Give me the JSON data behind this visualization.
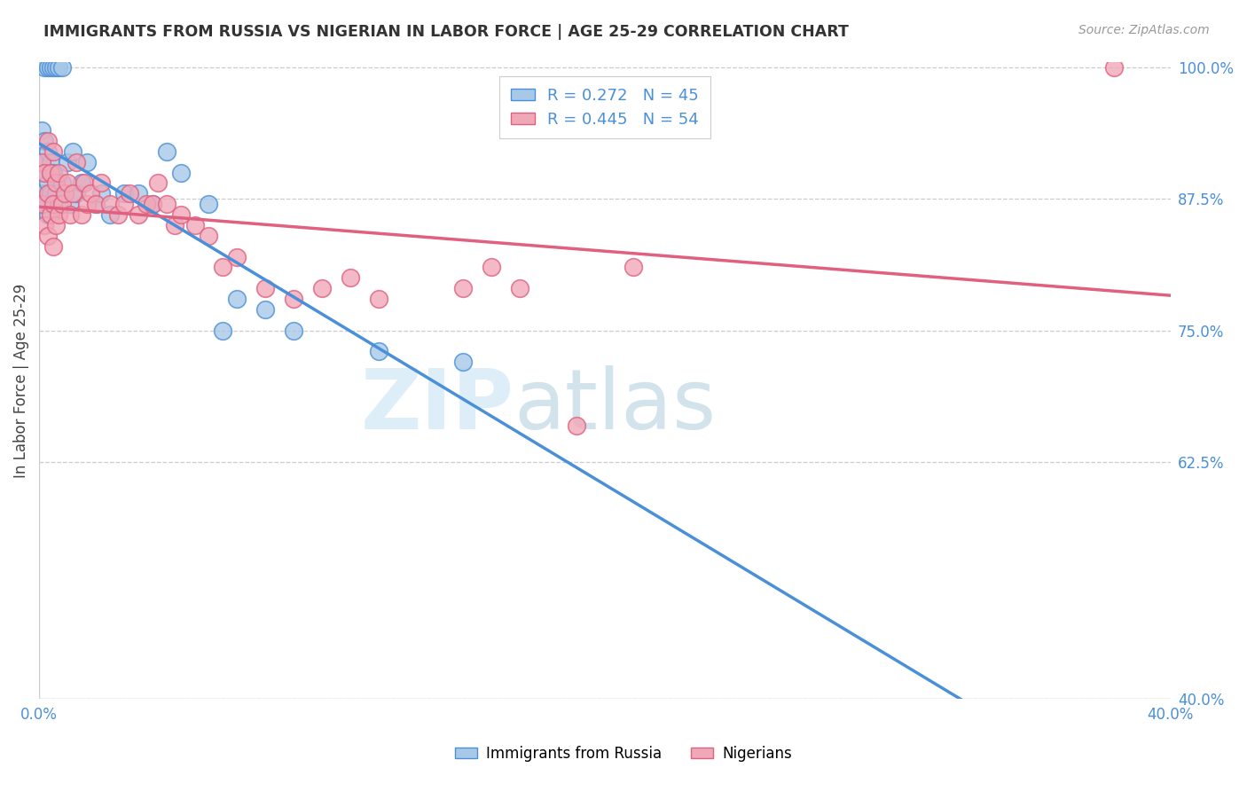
{
  "title": "IMMIGRANTS FROM RUSSIA VS NIGERIAN IN LABOR FORCE | AGE 25-29 CORRELATION CHART",
  "source": "Source: ZipAtlas.com",
  "ylabel": "In Labor Force | Age 25-29",
  "xlim": [
    0.0,
    0.4
  ],
  "ylim": [
    0.4,
    1.005
  ],
  "xticks": [
    0.0,
    0.05,
    0.1,
    0.15,
    0.2,
    0.25,
    0.3,
    0.35,
    0.4
  ],
  "xticklabels": [
    "0.0%",
    "",
    "",
    "",
    "",
    "",
    "",
    "",
    "40.0%"
  ],
  "yticks": [
    0.4,
    0.625,
    0.75,
    0.875,
    1.0
  ],
  "yticklabels": [
    "40.0%",
    "62.5%",
    "75.0%",
    "87.5%",
    "100.0%"
  ],
  "russia_R": 0.272,
  "russia_N": 45,
  "nigeria_R": 0.445,
  "nigeria_N": 54,
  "russia_color": "#a8c8e8",
  "nigeria_color": "#f0a8b8",
  "russia_line_color": "#4a90d9",
  "nigeria_line_color": "#e06080",
  "background_color": "#ffffff",
  "grid_color": "#cccccc",
  "title_color": "#333333",
  "axis_color": "#4a90d9",
  "watermark_color": "#ddeef8",
  "figwidth": 14.06,
  "figheight": 8.92,
  "russia_x": [
    0.001,
    0.001,
    0.001,
    0.002,
    0.002,
    0.002,
    0.002,
    0.003,
    0.003,
    0.003,
    0.003,
    0.004,
    0.004,
    0.004,
    0.005,
    0.005,
    0.005,
    0.006,
    0.006,
    0.007,
    0.007,
    0.008,
    0.008,
    0.009,
    0.01,
    0.011,
    0.012,
    0.013,
    0.015,
    0.017,
    0.02,
    0.022,
    0.025,
    0.03,
    0.035,
    0.04,
    0.045,
    0.05,
    0.06,
    0.065,
    0.07,
    0.08,
    0.09,
    0.12,
    0.15
  ],
  "russia_y": [
    0.88,
    0.91,
    0.94,
    0.87,
    0.9,
    0.93,
    1.0,
    0.86,
    0.89,
    0.92,
    1.0,
    0.88,
    0.91,
    1.0,
    0.87,
    0.9,
    1.0,
    0.88,
    1.0,
    0.87,
    1.0,
    0.89,
    1.0,
    0.88,
    0.91,
    0.87,
    0.92,
    0.88,
    0.89,
    0.91,
    0.87,
    0.88,
    0.86,
    0.88,
    0.88,
    0.87,
    0.92,
    0.9,
    0.87,
    0.75,
    0.78,
    0.77,
    0.75,
    0.73,
    0.72
  ],
  "nigeria_x": [
    0.001,
    0.001,
    0.002,
    0.002,
    0.003,
    0.003,
    0.003,
    0.004,
    0.004,
    0.005,
    0.005,
    0.005,
    0.006,
    0.006,
    0.007,
    0.007,
    0.008,
    0.009,
    0.01,
    0.011,
    0.012,
    0.013,
    0.015,
    0.016,
    0.017,
    0.018,
    0.02,
    0.022,
    0.025,
    0.028,
    0.03,
    0.032,
    0.035,
    0.038,
    0.04,
    0.042,
    0.045,
    0.048,
    0.05,
    0.055,
    0.06,
    0.065,
    0.07,
    0.08,
    0.09,
    0.1,
    0.11,
    0.12,
    0.15,
    0.16,
    0.17,
    0.19,
    0.21,
    0.38
  ],
  "nigeria_y": [
    0.87,
    0.91,
    0.85,
    0.9,
    0.84,
    0.88,
    0.93,
    0.86,
    0.9,
    0.83,
    0.87,
    0.92,
    0.85,
    0.89,
    0.86,
    0.9,
    0.87,
    0.88,
    0.89,
    0.86,
    0.88,
    0.91,
    0.86,
    0.89,
    0.87,
    0.88,
    0.87,
    0.89,
    0.87,
    0.86,
    0.87,
    0.88,
    0.86,
    0.87,
    0.87,
    0.89,
    0.87,
    0.85,
    0.86,
    0.85,
    0.84,
    0.81,
    0.82,
    0.79,
    0.78,
    0.79,
    0.8,
    0.78,
    0.79,
    0.81,
    0.79,
    0.66,
    0.81,
    1.0
  ]
}
